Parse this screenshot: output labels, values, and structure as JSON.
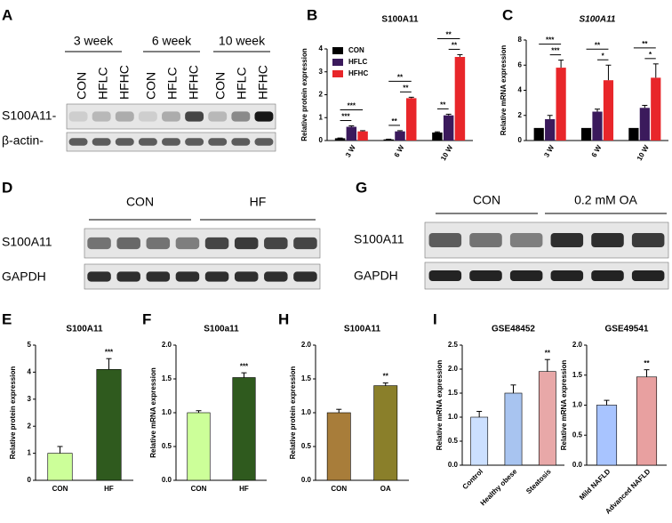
{
  "panel_labels": [
    "A",
    "B",
    "C",
    "D",
    "G",
    "E",
    "F",
    "H",
    "I"
  ],
  "blot_A": {
    "time_points": [
      "3 week",
      "6 week",
      "10 week"
    ],
    "lanes": [
      "CON",
      "HFLC",
      "HFHC",
      "CON",
      "HFLC",
      "HFHC",
      "CON",
      "HFLC",
      "HFHC"
    ],
    "rows": [
      "S100A11-",
      "β-actin-"
    ]
  },
  "blot_D": {
    "groups": [
      "CON",
      "HF"
    ],
    "rows": [
      "S100A11",
      "GAPDH"
    ]
  },
  "blot_G": {
    "groups": [
      "CON",
      "0.2 mM OA"
    ],
    "rows": [
      "S100A11",
      "GAPDH"
    ]
  },
  "chart_data": [
    {
      "type": "bar",
      "title": "S100A11",
      "y_label": "Relative protein expression",
      "categories": [
        "3 W",
        "6 W",
        "10 W"
      ],
      "series": [
        {
          "name": "CON",
          "color": "#000000",
          "values": [
            0.1,
            0.05,
            0.35
          ],
          "errors": [
            0.01,
            0.01,
            0.03
          ]
        },
        {
          "name": "HFLC",
          "color": "#3b1a5c",
          "values": [
            0.6,
            0.4,
            1.1
          ],
          "errors": [
            0.04,
            0.03,
            0.05
          ]
        },
        {
          "name": "HFHC",
          "color": "#e8262a",
          "values": [
            0.4,
            1.85,
            3.65
          ],
          "errors": [
            0.03,
            0.04,
            0.1
          ]
        }
      ],
      "ylim": [
        0,
        4
      ],
      "yticks": [
        0,
        1,
        2,
        3,
        4
      ],
      "legend": "upper left",
      "brackets": [
        {
          "label": "***",
          "category": 0,
          "from": 0,
          "to": 1
        },
        {
          "label": "***",
          "category": 0,
          "from": 0,
          "to": 2
        },
        {
          "label": "**",
          "category": 1,
          "from": 0,
          "to": 1
        },
        {
          "label": "**",
          "category": 1,
          "from": 1,
          "to": 2
        },
        {
          "label": "**",
          "category": 1,
          "from": 0,
          "to": 2
        },
        {
          "label": "**",
          "category": 2,
          "from": 0,
          "to": 1
        },
        {
          "label": "**",
          "category": 2,
          "from": 1,
          "to": 2
        },
        {
          "label": "**",
          "category": 2,
          "from": 0,
          "to": 2
        }
      ]
    },
    {
      "type": "bar",
      "title": "S100A11",
      "title_style": "italic",
      "y_label": "Relative mRNA expression",
      "categories": [
        "3 W",
        "6 W",
        "10 W"
      ],
      "series": [
        {
          "color": "#000000",
          "values": [
            1,
            1,
            1
          ],
          "errors": [
            0,
            0,
            0
          ]
        },
        {
          "color": "#3b1a5c",
          "values": [
            1.7,
            2.3,
            2.6
          ],
          "errors": [
            0.3,
            0.2,
            0.2
          ]
        },
        {
          "color": "#e8262a",
          "values": [
            5.8,
            4.8,
            5.0
          ],
          "errors": [
            0.6,
            1.2,
            1.1
          ]
        }
      ],
      "ylim": [
        0,
        8
      ],
      "yticks": [
        0,
        2,
        4,
        6,
        8
      ],
      "brackets": [
        {
          "label": "***",
          "category": 0,
          "from": 1,
          "to": 2
        },
        {
          "label": "***",
          "category": 0,
          "from": 0,
          "to": 2
        },
        {
          "label": "*",
          "category": 1,
          "from": 1,
          "to": 2
        },
        {
          "label": "**",
          "category": 1,
          "from": 0,
          "to": 2
        },
        {
          "label": "*",
          "category": 2,
          "from": 1,
          "to": 2
        },
        {
          "label": "**",
          "category": 2,
          "from": 0,
          "to": 2
        }
      ]
    },
    {
      "type": "bar",
      "title": "S100A11",
      "y_label": "Relative protein expression",
      "categories": [
        "CON",
        "HF"
      ],
      "values": [
        1,
        4.1
      ],
      "errors": [
        0.25,
        0.4
      ],
      "colors": [
        "#ccff99",
        "#2f5a1e"
      ],
      "ylim": [
        0,
        5
      ],
      "yticks": [
        0,
        1,
        2,
        3,
        4,
        5
      ],
      "annotations": [
        {
          "label": "***",
          "category": 1
        }
      ]
    },
    {
      "type": "bar",
      "title": "S100a11",
      "y_label": "Relative mRNA expression",
      "categories": [
        "CON",
        "HF"
      ],
      "values": [
        1.0,
        1.52
      ],
      "errors": [
        0.03,
        0.07
      ],
      "colors": [
        "#ccff99",
        "#2f5a1e"
      ],
      "ylim": [
        0,
        2
      ],
      "yticks": [
        {
          "value": 0,
          "label": "0.0"
        },
        0.5,
        {
          "value": 1,
          "label": "1.0"
        },
        1.5,
        {
          "value": 2,
          "label": "2.0"
        }
      ],
      "annotations": [
        {
          "label": "***",
          "category": 1
        }
      ]
    },
    {
      "type": "bar",
      "title": "S100A11",
      "y_label": "Relative protein expression",
      "categories": [
        "CON",
        "OA"
      ],
      "values": [
        1.0,
        1.4
      ],
      "errors": [
        0.05,
        0.04
      ],
      "colors": [
        "#a87d3a",
        "#8a7f2a"
      ],
      "ylim": [
        0,
        2
      ],
      "yticks": [
        {
          "value": 0,
          "label": "0.0"
        },
        0.5,
        {
          "value": 1,
          "label": "1.0"
        },
        1.5,
        {
          "value": 2,
          "label": "2.0"
        }
      ],
      "annotations": [
        {
          "label": "**",
          "category": 1
        }
      ]
    },
    {
      "type": "bar",
      "title": "GSE48452",
      "y_label": "Relative mRNA expression",
      "categories": [
        "Control",
        "Healthy obese",
        "Steatosis"
      ],
      "values": [
        1.0,
        1.5,
        1.95
      ],
      "errors": [
        0.12,
        0.17,
        0.25
      ],
      "colors": [
        "#cce0ff",
        "#a8c4f0",
        "#e8a8a8"
      ],
      "ylim": [
        0,
        2.5
      ],
      "yticks": [
        {
          "value": 0,
          "label": "0.0"
        },
        0.5,
        {
          "value": 1,
          "label": "1.0"
        },
        1.5,
        {
          "value": 2,
          "label": "2.0"
        },
        2.5
      ],
      "annotations": [
        {
          "label": "**",
          "category": 2
        }
      ]
    },
    {
      "type": "bar",
      "title": "GSE49541",
      "y_label": "Relative mRNA expression",
      "categories": [
        "Mild NAFLD",
        "Advanced NAFLD"
      ],
      "values": [
        1.0,
        1.47
      ],
      "errors": [
        0.08,
        0.12
      ],
      "colors": [
        "#a8c4ff",
        "#e8a0a0"
      ],
      "ylim": [
        0,
        2
      ],
      "yticks": [
        {
          "value": 0,
          "label": "0.0"
        },
        0.5,
        {
          "value": 1,
          "label": "1.0"
        },
        1.5,
        {
          "value": 2,
          "label": "2.0"
        }
      ],
      "annotations": [
        {
          "label": "**",
          "category": 1
        }
      ]
    }
  ]
}
